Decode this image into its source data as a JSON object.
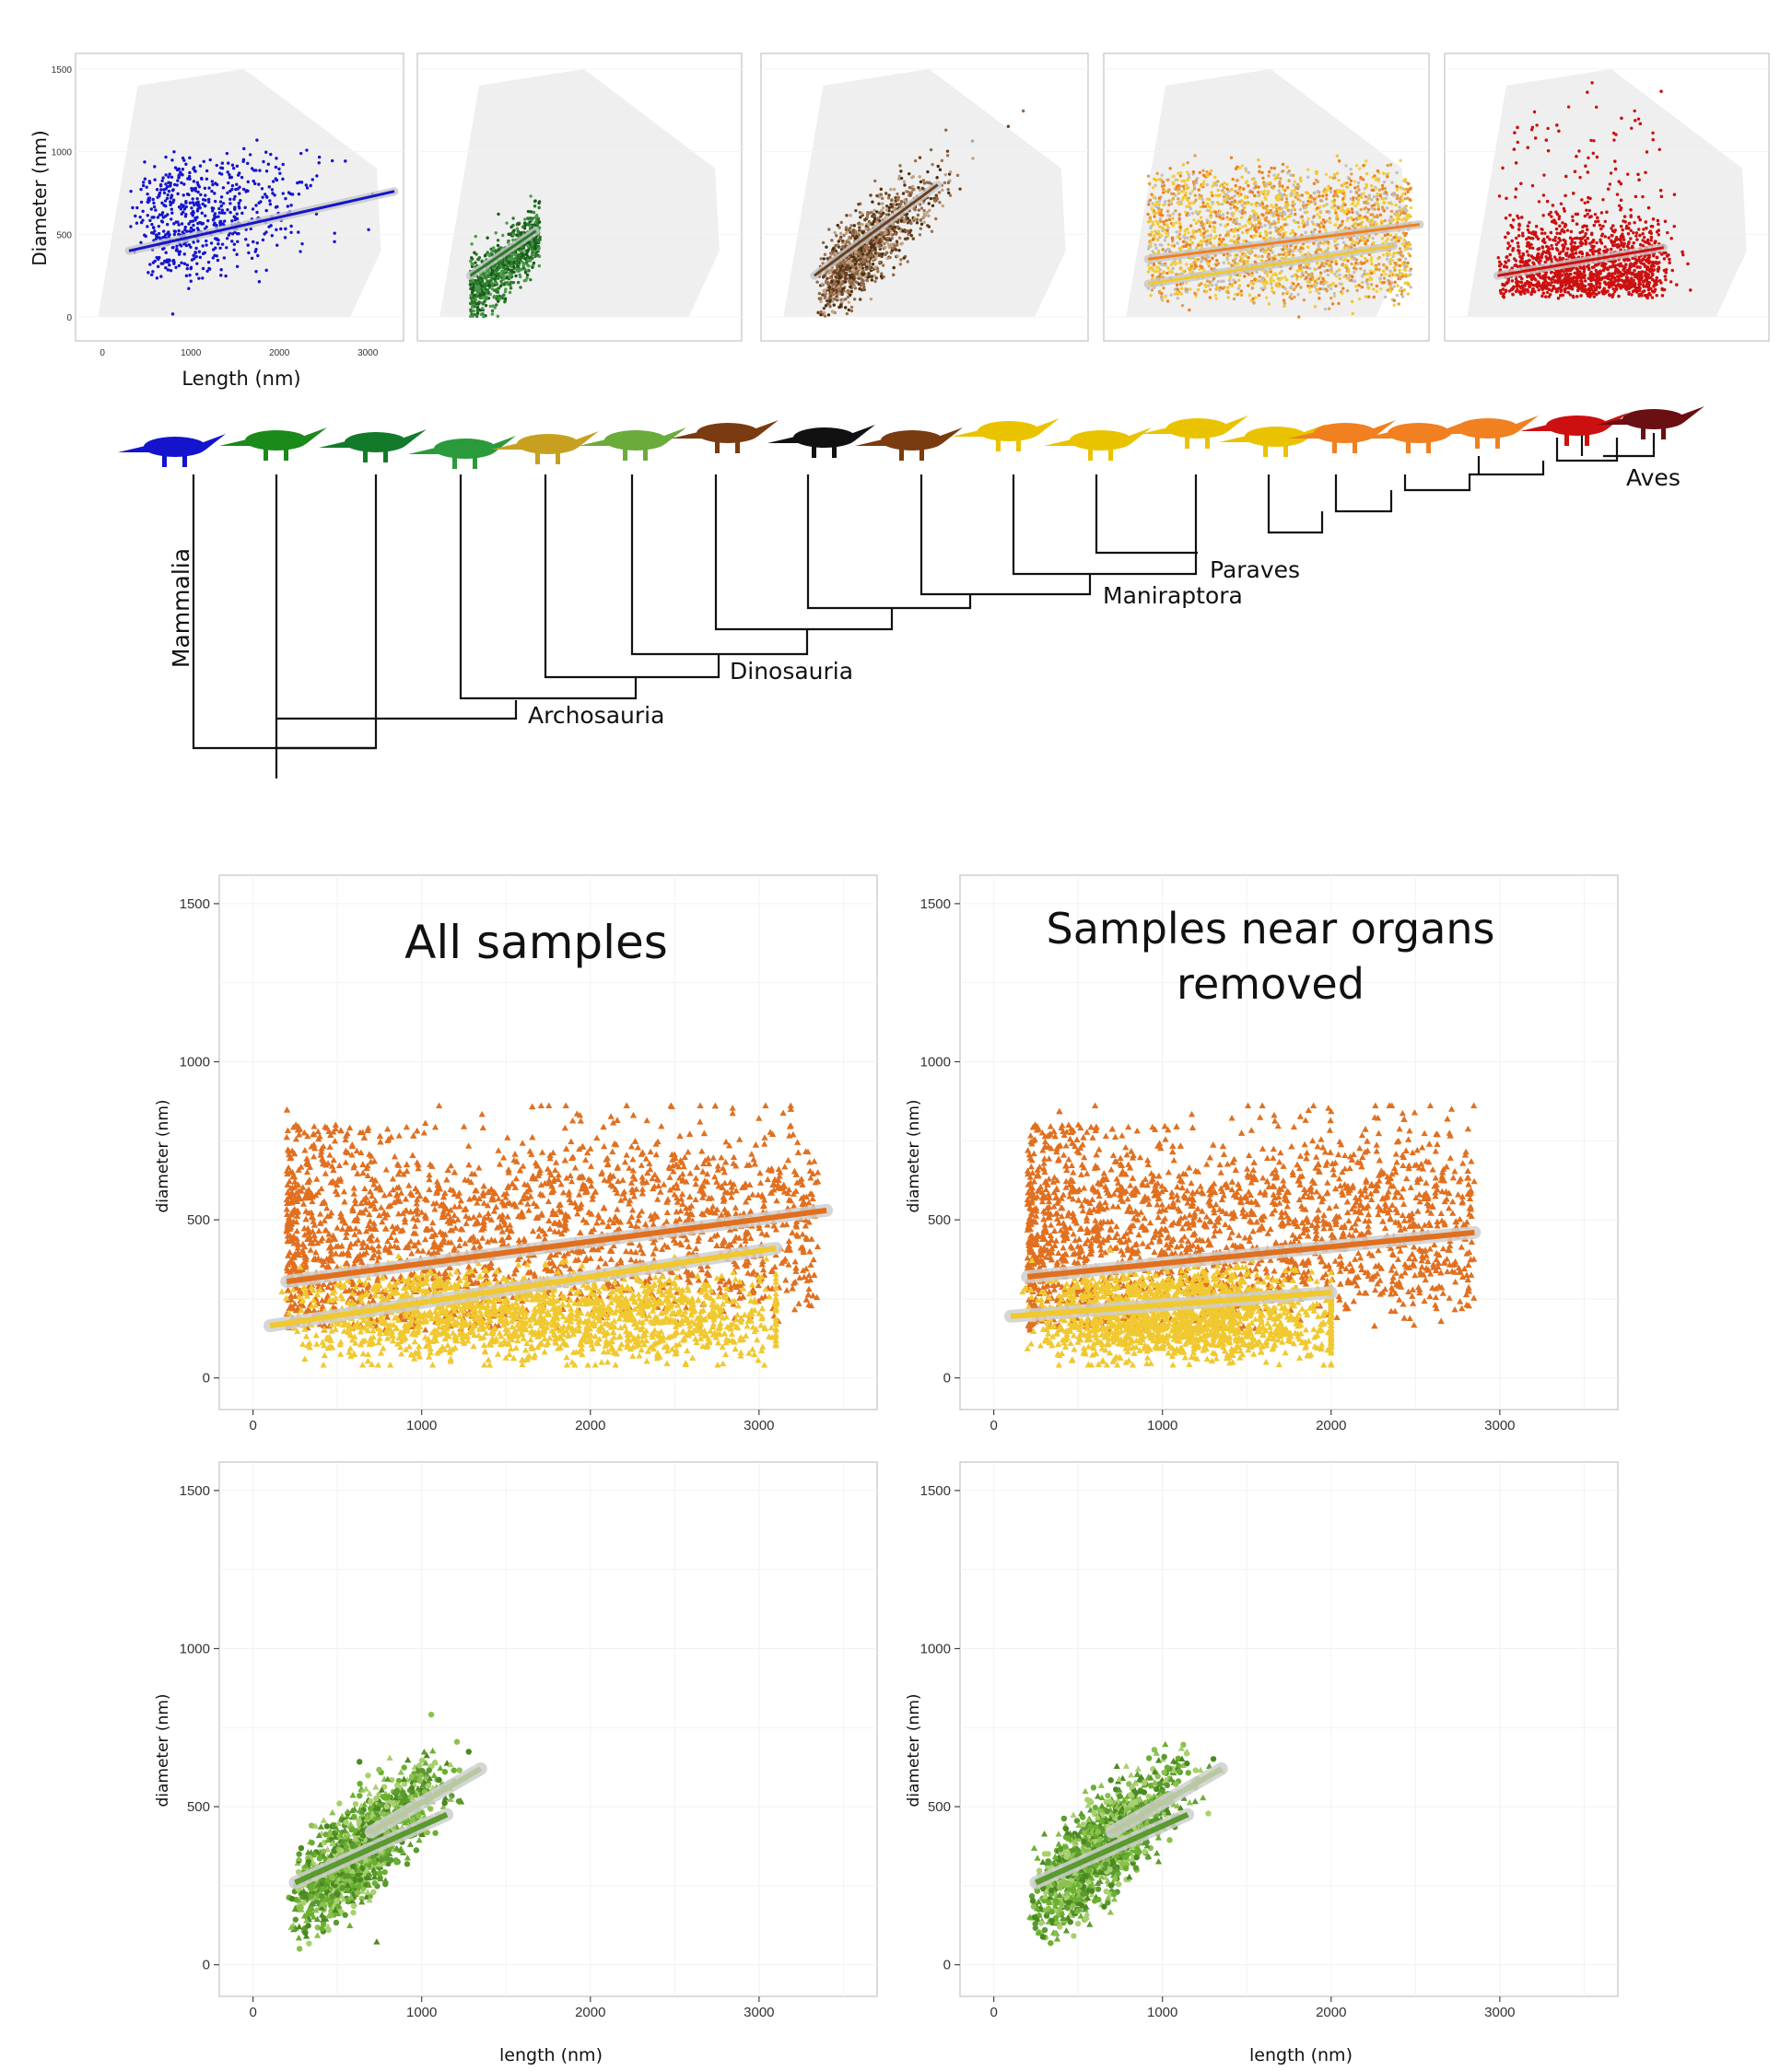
{
  "colors": {
    "mammal": "#1414cc",
    "lizard": "#1a8a1a",
    "turtle": "#137a2a",
    "croc": "#2a9a3a",
    "ptero": "#c8a020",
    "ornith": "#6aab3a",
    "theropod_brown": "#7a3b10",
    "trex": "#111111",
    "mani_yellow": "#eac300",
    "para_orange": "#f08020",
    "bird_red": "#cc1010",
    "ostrich": "#6a0f12",
    "orange_pts": "#e07020",
    "yellow_pts": "#f0c830",
    "green_pts": "#6ab030",
    "shade": "#efefef"
  },
  "top_row": {
    "xlabel": "Length (nm)",
    "ylabel": "Diameter (nm)",
    "y_ticks": [
      "1500",
      "1000",
      "500",
      "0"
    ],
    "x_ticks": [
      "0",
      "1000",
      "2000",
      "3000"
    ]
  },
  "tree": {
    "labels": {
      "mammalia": "Mammalia",
      "archosauria": "Archosauria",
      "dinosauria": "Dinosauria",
      "maniraptora": "Maniraptora",
      "paraves": "Paraves",
      "aves": "Aves"
    }
  },
  "chart_data": [
    {
      "type": "scatter",
      "title": "",
      "xlabel": "Length (nm)",
      "ylabel": "Diameter (nm)",
      "xlim": [
        -200,
        3300
      ],
      "ylim": [
        -100,
        1550
      ],
      "series": [
        {
          "color": "#1414cc",
          "points": [
            [
              500,
              350
            ],
            [
              800,
              550
            ],
            [
              1200,
              450
            ],
            [
              1500,
              800
            ],
            [
              2200,
              500
            ],
            [
              3000,
              650
            ]
          ],
          "fit": [
            [
              300,
              400
            ],
            [
              3300,
              760
            ]
          ]
        }
      ]
    },
    {
      "type": "scatter",
      "title": "",
      "series": [
        {
          "color": "#2a7a2a",
          "fit": [
            [
              300,
              250
            ],
            [
              1050,
              520
            ]
          ]
        }
      ]
    },
    {
      "type": "scatter",
      "title": "",
      "series": [
        {
          "color": "#6a4020",
          "fit": [
            [
              300,
              250
            ],
            [
              1700,
              800
            ]
          ]
        }
      ]
    },
    {
      "type": "scatter",
      "title": "",
      "series": [
        {
          "color": "#f08020",
          "fit": [
            [
              200,
              350
            ],
            [
              3300,
              560
            ]
          ]
        },
        {
          "color": "#f0c830",
          "fit": [
            [
              200,
              200
            ],
            [
              3000,
              430
            ]
          ]
        }
      ]
    },
    {
      "type": "scatter",
      "title": "",
      "series": [
        {
          "color": "#cc1010",
          "fit": [
            [
              300,
              250
            ],
            [
              2200,
              420
            ]
          ]
        }
      ]
    },
    {
      "type": "scatter",
      "title": "All samples",
      "xlabel": "",
      "ylabel": "diameter (nm)",
      "x_ticks": [
        0,
        1000,
        2000,
        3000
      ],
      "y_ticks": [
        0,
        500,
        1000,
        1500
      ],
      "xlim": [
        -200,
        3700
      ],
      "ylim": [
        -100,
        1590
      ],
      "series": [
        {
          "color": "#e07020",
          "fit": [
            [
              200,
              305
            ],
            [
              3400,
              530
            ]
          ]
        },
        {
          "color": "#f0c830",
          "fit": [
            [
              100,
              165
            ],
            [
              3100,
              410
            ]
          ]
        }
      ]
    },
    {
      "type": "scatter",
      "title": "Samples near organs removed",
      "xlabel": "",
      "ylabel": "diameter (nm)",
      "x_ticks": [
        0,
        1000,
        2000,
        3000
      ],
      "y_ticks": [
        0,
        500,
        1000,
        1500
      ],
      "xlim": [
        -200,
        3700
      ],
      "ylim": [
        -100,
        1590
      ],
      "series": [
        {
          "color": "#e07020",
          "fit": [
            [
              200,
              320
            ],
            [
              2850,
              460
            ]
          ]
        },
        {
          "color": "#f0c830",
          "fit": [
            [
              100,
              195
            ],
            [
              2000,
              270
            ]
          ]
        }
      ]
    },
    {
      "type": "scatter",
      "title": "",
      "xlabel": "length (nm)",
      "ylabel": "diameter (nm)",
      "x_ticks": [
        0,
        1000,
        2000,
        3000
      ],
      "y_ticks": [
        0,
        500,
        1000,
        1500
      ],
      "xlim": [
        -200,
        3700
      ],
      "ylim": [
        -100,
        1590
      ],
      "series": [
        {
          "color": "#5a9a30",
          "fit": [
            [
              250,
              260
            ],
            [
              1150,
              475
            ]
          ]
        },
        {
          "color": "#b8c8a0",
          "fit": [
            [
              700,
              420
            ],
            [
              1350,
              620
            ]
          ]
        }
      ]
    },
    {
      "type": "scatter",
      "title": "",
      "xlabel": "length (nm)",
      "ylabel": "diameter (nm)",
      "x_ticks": [
        0,
        1000,
        2000,
        3000
      ],
      "y_ticks": [
        0,
        500,
        1000,
        1500
      ],
      "xlim": [
        -200,
        3700
      ],
      "ylim": [
        -100,
        1590
      ],
      "series": [
        {
          "color": "#5a9a30",
          "fit": [
            [
              250,
              260
            ],
            [
              1150,
              475
            ]
          ]
        },
        {
          "color": "#b8c8a0",
          "fit": [
            [
              700,
              420
            ],
            [
              1350,
              620
            ]
          ]
        }
      ]
    }
  ],
  "bottom_panels": {
    "title_all": "All samples",
    "title_removed_line1": "Samples near organs",
    "title_removed_line2": "removed",
    "ylabel": "diameter (nm)",
    "xlabel": "length (nm)",
    "y_ticks": [
      "1500",
      "1000",
      "500",
      "0"
    ],
    "x_ticks": [
      "0",
      "1000",
      "2000",
      "3000"
    ]
  }
}
